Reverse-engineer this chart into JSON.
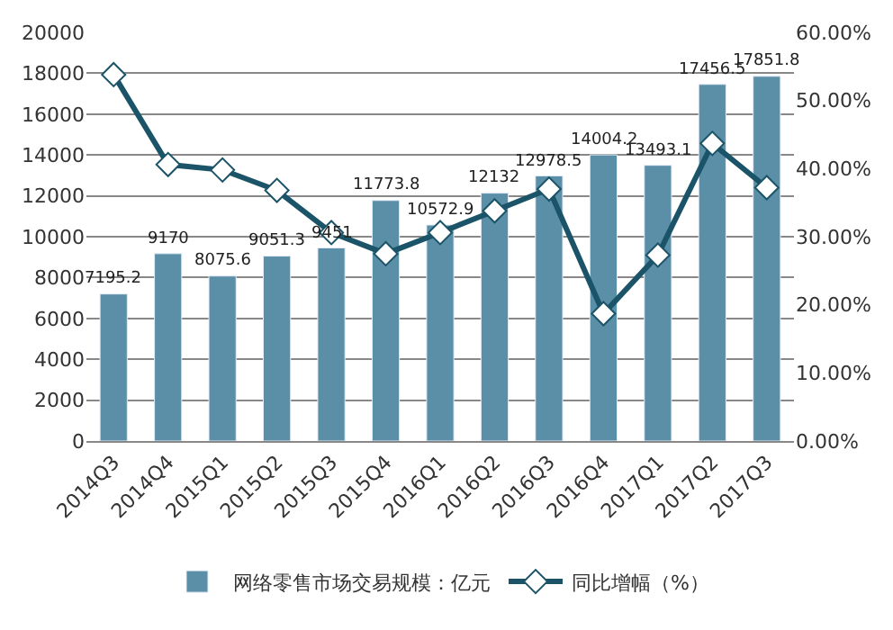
{
  "chart_data": {
    "type": "bar",
    "categories": [
      "2014Q3",
      "2014Q4",
      "2015Q1",
      "2015Q2",
      "2015Q3",
      "2015Q4",
      "2016Q1",
      "2016Q2",
      "2016Q3",
      "2016Q4",
      "2017Q1",
      "2017Q2",
      "2017Q3"
    ],
    "series": [
      {
        "name": "网络零售市场交易规模：亿元",
        "color": "#5b8fa8",
        "values": [
          7195.2,
          9170,
          8075.6,
          9051.3,
          9451,
          11773.8,
          10572.9,
          12132,
          12978.5,
          14004.2,
          13493.1,
          17456.5,
          17851.8
        ],
        "data_labels": true
      },
      {
        "name": "同比增幅（%）",
        "type": "line",
        "axis": "y2",
        "color": "#1b5468",
        "marker": "diamond",
        "values": [
          53.8,
          40.6,
          39.8,
          36.8,
          30.6,
          27.5,
          30.6,
          33.8,
          37.0,
          18.7,
          27.3,
          43.7,
          37.2
        ]
      }
    ],
    "ylim": [
      0,
      20000
    ],
    "yticks": [
      0,
      2000,
      4000,
      6000,
      8000,
      10000,
      12000,
      14000,
      16000,
      18000,
      20000
    ],
    "y2lim": [
      0,
      60
    ],
    "y2ticks": [
      {
        "value": 0,
        "label": "0.00%"
      },
      {
        "value": 10,
        "label": "10.00%"
      },
      {
        "value": 20,
        "label": "20.00%"
      },
      {
        "value": 30,
        "label": "30.00%"
      },
      {
        "value": 40,
        "label": "40.00%"
      },
      {
        "value": 50,
        "label": "50.00%"
      },
      {
        "value": 60,
        "label": "60.00%"
      }
    ],
    "grid": "y",
    "legend": "bottom"
  }
}
